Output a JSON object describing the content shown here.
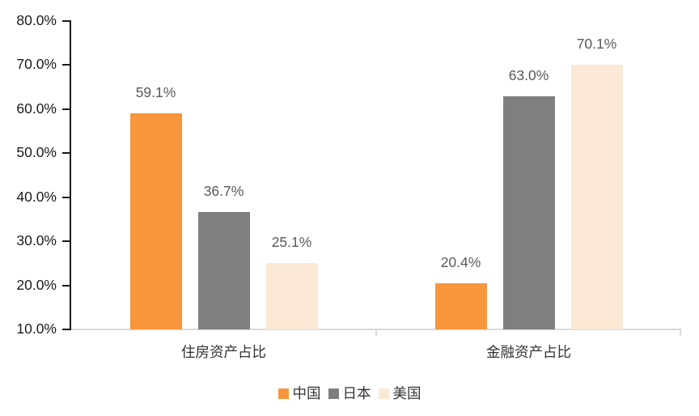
{
  "chart_data": {
    "type": "bar",
    "title": "",
    "categories": [
      "住房资产占比",
      "金融资产占比"
    ],
    "series": [
      {
        "name": "中国",
        "color": "#F7963C",
        "values": [
          59.1,
          20.4
        ],
        "labels": [
          "59.1%",
          "20.4%"
        ]
      },
      {
        "name": "日本",
        "color": "#7F7F7F",
        "values": [
          36.7,
          63.0
        ],
        "labels": [
          "36.7%",
          "63.0%"
        ]
      },
      {
        "name": "美国",
        "color": "#FBE9D6",
        "values": [
          25.1,
          70.1
        ],
        "labels": [
          "25.1%",
          "70.1%"
        ]
      }
    ],
    "ylim": [
      10,
      80
    ],
    "ytick_step": 10,
    "ytick_labels": [
      "80.0%",
      "70.0%",
      "60.0%",
      "50.0%",
      "40.0%",
      "30.0%",
      "20.0%",
      "10.0%"
    ],
    "xlabel": "",
    "ylabel": "",
    "grid": false,
    "legend_position": "bottom",
    "colors": {
      "axis": "#1a1a1a",
      "baseline": "#d9d9d9",
      "data_label": "#595959",
      "tick_label": "#1a1a1a",
      "category_label": "#333333",
      "background": "#ffffff"
    }
  }
}
